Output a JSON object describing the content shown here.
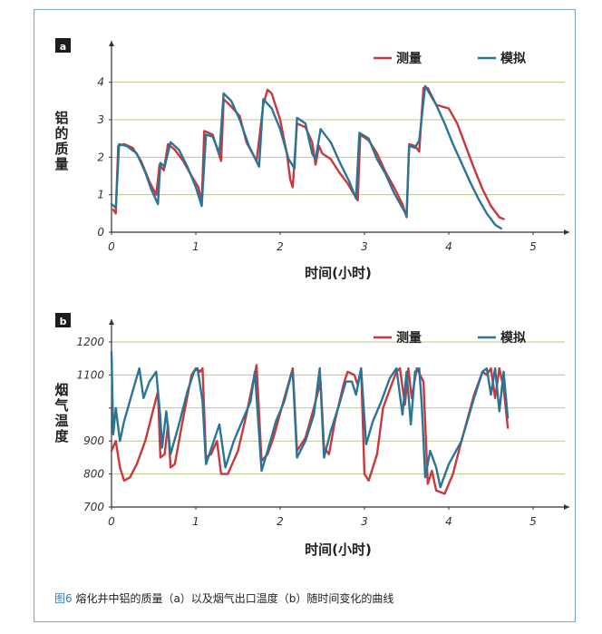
{
  "caption": {
    "figure_label": "图6",
    "text": " 熔化井中铝的质量（a）以及烟气出口温度（b）随时间变化的曲线"
  },
  "colors": {
    "measured": "#c8383c",
    "simulated": "#2a7596",
    "grid": "#b9c98a",
    "axis": "#333333",
    "frame": "#7fa9c4"
  },
  "chart_data": [
    {
      "panel_label": "a",
      "type": "line",
      "xlabel": "时间(小时)",
      "ylabel": "铝的质量",
      "xlim": [
        0,
        5.3
      ],
      "ylim": [
        0,
        4.5
      ],
      "x_ticks": [
        0,
        1,
        2,
        3,
        4,
        5
      ],
      "y_ticks": [
        0,
        1,
        2,
        3,
        4
      ],
      "grid": "horizontal",
      "legend": "top-right",
      "series": [
        {
          "name": "测量",
          "color": "#c8383c",
          "points": [
            [
              0.02,
              0.6
            ],
            [
              0.05,
              0.5
            ],
            [
              0.08,
              2.3
            ],
            [
              0.15,
              2.35
            ],
            [
              0.25,
              2.25
            ],
            [
              0.35,
              1.9
            ],
            [
              0.45,
              1.35
            ],
            [
              0.53,
              1.0
            ],
            [
              0.57,
              1.8
            ],
            [
              0.62,
              1.65
            ],
            [
              0.67,
              2.35
            ],
            [
              0.75,
              2.2
            ],
            [
              0.85,
              1.9
            ],
            [
              0.95,
              1.5
            ],
            [
              1.03,
              1.2
            ],
            [
              1.07,
              0.8
            ],
            [
              1.1,
              2.7
            ],
            [
              1.2,
              2.6
            ],
            [
              1.3,
              1.9
            ],
            [
              1.33,
              3.55
            ],
            [
              1.42,
              3.35
            ],
            [
              1.52,
              3.1
            ],
            [
              1.6,
              2.4
            ],
            [
              1.72,
              1.9
            ],
            [
              1.8,
              3.4
            ],
            [
              1.85,
              3.8
            ],
            [
              1.9,
              3.7
            ],
            [
              2.0,
              3.0
            ],
            [
              2.08,
              2.1
            ],
            [
              2.12,
              1.4
            ],
            [
              2.15,
              1.2
            ],
            [
              2.2,
              2.9
            ],
            [
              2.3,
              2.8
            ],
            [
              2.38,
              2.4
            ],
            [
              2.42,
              1.8
            ],
            [
              2.46,
              2.3
            ],
            [
              2.5,
              2.1
            ],
            [
              2.6,
              1.95
            ],
            [
              2.7,
              1.6
            ],
            [
              2.8,
              1.3
            ],
            [
              2.88,
              1.0
            ],
            [
              2.92,
              0.85
            ],
            [
              2.95,
              2.6
            ],
            [
              3.05,
              2.45
            ],
            [
              3.15,
              2.1
            ],
            [
              3.25,
              1.6
            ],
            [
              3.35,
              1.2
            ],
            [
              3.45,
              0.75
            ],
            [
              3.5,
              0.4
            ],
            [
              3.53,
              2.35
            ],
            [
              3.6,
              2.3
            ],
            [
              3.65,
              2.15
            ],
            [
              3.7,
              3.85
            ],
            [
              3.75,
              3.85
            ],
            [
              3.85,
              3.4
            ],
            [
              4.0,
              3.3
            ],
            [
              4.1,
              2.9
            ],
            [
              4.2,
              2.3
            ],
            [
              4.3,
              1.7
            ],
            [
              4.4,
              1.15
            ],
            [
              4.5,
              0.7
            ],
            [
              4.6,
              0.4
            ],
            [
              4.65,
              0.35
            ]
          ]
        },
        {
          "name": "模拟",
          "color": "#2a7596",
          "points": [
            [
              0.0,
              0.75
            ],
            [
              0.05,
              0.65
            ],
            [
              0.09,
              2.35
            ],
            [
              0.18,
              2.3
            ],
            [
              0.3,
              2.1
            ],
            [
              0.4,
              1.6
            ],
            [
              0.47,
              1.15
            ],
            [
              0.55,
              0.75
            ],
            [
              0.58,
              1.85
            ],
            [
              0.63,
              1.75
            ],
            [
              0.7,
              2.4
            ],
            [
              0.8,
              2.2
            ],
            [
              0.9,
              1.75
            ],
            [
              1.0,
              1.2
            ],
            [
              1.07,
              0.7
            ],
            [
              1.12,
              2.6
            ],
            [
              1.2,
              2.55
            ],
            [
              1.28,
              2.1
            ],
            [
              1.33,
              3.7
            ],
            [
              1.42,
              3.5
            ],
            [
              1.52,
              3.0
            ],
            [
              1.63,
              2.3
            ],
            [
              1.75,
              1.75
            ],
            [
              1.8,
              3.55
            ],
            [
              1.9,
              3.3
            ],
            [
              2.0,
              2.75
            ],
            [
              2.1,
              1.95
            ],
            [
              2.17,
              1.7
            ],
            [
              2.2,
              3.05
            ],
            [
              2.3,
              2.9
            ],
            [
              2.38,
              2.1
            ],
            [
              2.42,
              1.95
            ],
            [
              2.48,
              2.75
            ],
            [
              2.6,
              2.4
            ],
            [
              2.72,
              1.8
            ],
            [
              2.82,
              1.35
            ],
            [
              2.9,
              0.9
            ],
            [
              2.94,
              2.65
            ],
            [
              3.05,
              2.5
            ],
            [
              3.15,
              1.95
            ],
            [
              3.25,
              1.55
            ],
            [
              3.35,
              1.05
            ],
            [
              3.5,
              0.45
            ],
            [
              3.53,
              2.3
            ],
            [
              3.6,
              2.25
            ],
            [
              3.65,
              2.45
            ],
            [
              3.72,
              3.9
            ],
            [
              3.85,
              3.4
            ],
            [
              3.95,
              2.9
            ],
            [
              4.05,
              2.35
            ],
            [
              4.15,
              1.85
            ],
            [
              4.25,
              1.35
            ],
            [
              4.35,
              0.9
            ],
            [
              4.45,
              0.5
            ],
            [
              4.55,
              0.2
            ],
            [
              4.62,
              0.1
            ]
          ]
        }
      ]
    },
    {
      "panel_label": "b",
      "type": "line",
      "xlabel": "时间(小时)",
      "ylabel": "烟气温度",
      "xlim": [
        0,
        5.4
      ],
      "ylim": [
        700,
        1200
      ],
      "x_ticks": [
        0,
        1,
        2,
        3,
        4,
        5
      ],
      "y_ticks": [
        700,
        800,
        900,
        1000,
        1100,
        1200
      ],
      "y_tick_labels": [
        "700",
        "800",
        "900",
        "",
        "1100",
        "1200"
      ],
      "grid": "horizontal",
      "legend": "top-right",
      "series": [
        {
          "name": "测量",
          "color": "#c8383c",
          "points": [
            [
              0.0,
              870
            ],
            [
              0.05,
              900
            ],
            [
              0.1,
              820
            ],
            [
              0.15,
              780
            ],
            [
              0.22,
              790
            ],
            [
              0.3,
              830
            ],
            [
              0.4,
              900
            ],
            [
              0.5,
              1000
            ],
            [
              0.55,
              1050
            ],
            [
              0.58,
              850
            ],
            [
              0.63,
              860
            ],
            [
              0.67,
              950
            ],
            [
              0.7,
              820
            ],
            [
              0.75,
              830
            ],
            [
              0.85,
              970
            ],
            [
              0.95,
              1100
            ],
            [
              1.0,
              1120
            ],
            [
              1.05,
              1110
            ],
            [
              1.08,
              1120
            ],
            [
              1.12,
              850
            ],
            [
              1.18,
              860
            ],
            [
              1.25,
              900
            ],
            [
              1.3,
              800
            ],
            [
              1.38,
              800
            ],
            [
              1.5,
              870
            ],
            [
              1.6,
              980
            ],
            [
              1.68,
              1080
            ],
            [
              1.72,
              1130
            ],
            [
              1.78,
              840
            ],
            [
              1.85,
              860
            ],
            [
              1.92,
              910
            ],
            [
              2.05,
              1030
            ],
            [
              2.15,
              1120
            ],
            [
              2.2,
              870
            ],
            [
              2.3,
              910
            ],
            [
              2.4,
              1000
            ],
            [
              2.48,
              1080
            ],
            [
              2.52,
              880
            ],
            [
              2.58,
              860
            ],
            [
              2.65,
              960
            ],
            [
              2.75,
              1070
            ],
            [
              2.8,
              1110
            ],
            [
              2.88,
              1100
            ],
            [
              2.92,
              1070
            ],
            [
              2.96,
              1120
            ],
            [
              3.0,
              800
            ],
            [
              3.05,
              780
            ],
            [
              3.1,
              820
            ],
            [
              3.15,
              860
            ],
            [
              3.22,
              1000
            ],
            [
              3.32,
              1070
            ],
            [
              3.38,
              1110
            ],
            [
              3.42,
              1120
            ],
            [
              3.48,
              1010
            ],
            [
              3.52,
              1120
            ],
            [
              3.56,
              1030
            ],
            [
              3.62,
              1120
            ],
            [
              3.66,
              1100
            ],
            [
              3.7,
              1080
            ],
            [
              3.75,
              770
            ],
            [
              3.8,
              810
            ],
            [
              3.85,
              750
            ],
            [
              3.95,
              740
            ],
            [
              4.05,
              800
            ],
            [
              4.15,
              900
            ],
            [
              4.3,
              1040
            ],
            [
              4.4,
              1110
            ],
            [
              4.45,
              1100
            ],
            [
              4.5,
              1120
            ],
            [
              4.55,
              1030
            ],
            [
              4.6,
              1120
            ],
            [
              4.65,
              1060
            ],
            [
              4.7,
              940
            ]
          ]
        },
        {
          "name": "模拟",
          "color": "#2a7596",
          "points": [
            [
              0.0,
              1170
            ],
            [
              0.02,
              920
            ],
            [
              0.05,
              1000
            ],
            [
              0.1,
              900
            ],
            [
              0.15,
              960
            ],
            [
              0.25,
              1050
            ],
            [
              0.33,
              1120
            ],
            [
              0.38,
              1030
            ],
            [
              0.45,
              1080
            ],
            [
              0.53,
              1110
            ],
            [
              0.58,
              970
            ],
            [
              0.6,
              880
            ],
            [
              0.65,
              990
            ],
            [
              0.7,
              860
            ],
            [
              0.8,
              950
            ],
            [
              0.9,
              1050
            ],
            [
              0.98,
              1110
            ],
            [
              1.02,
              1120
            ],
            [
              1.08,
              1020
            ],
            [
              1.12,
              830
            ],
            [
              1.2,
              890
            ],
            [
              1.28,
              950
            ],
            [
              1.35,
              820
            ],
            [
              1.45,
              900
            ],
            [
              1.55,
              960
            ],
            [
              1.65,
              1020
            ],
            [
              1.7,
              1110
            ],
            [
              1.78,
              810
            ],
            [
              1.85,
              870
            ],
            [
              1.95,
              960
            ],
            [
              2.05,
              1020
            ],
            [
              2.12,
              1090
            ],
            [
              2.15,
              1110
            ],
            [
              2.2,
              850
            ],
            [
              2.3,
              900
            ],
            [
              2.4,
              980
            ],
            [
              2.47,
              1120
            ],
            [
              2.52,
              850
            ],
            [
              2.6,
              930
            ],
            [
              2.7,
              1010
            ],
            [
              2.78,
              1080
            ],
            [
              2.85,
              1080
            ],
            [
              2.9,
              1040
            ],
            [
              2.96,
              1120
            ],
            [
              3.02,
              890
            ],
            [
              3.1,
              960
            ],
            [
              3.2,
              1020
            ],
            [
              3.3,
              1090
            ],
            [
              3.38,
              1120
            ],
            [
              3.45,
              980
            ],
            [
              3.5,
              1110
            ],
            [
              3.55,
              950
            ],
            [
              3.6,
              1110
            ],
            [
              3.65,
              1120
            ],
            [
              3.68,
              1010
            ],
            [
              3.72,
              790
            ],
            [
              3.78,
              870
            ],
            [
              3.85,
              820
            ],
            [
              3.9,
              760
            ],
            [
              4.0,
              830
            ],
            [
              4.15,
              900
            ],
            [
              4.3,
              1030
            ],
            [
              4.4,
              1110
            ],
            [
              4.45,
              1120
            ],
            [
              4.5,
              1040
            ],
            [
              4.55,
              1120
            ],
            [
              4.6,
              990
            ],
            [
              4.65,
              1110
            ],
            [
              4.7,
              970
            ]
          ]
        }
      ]
    }
  ]
}
